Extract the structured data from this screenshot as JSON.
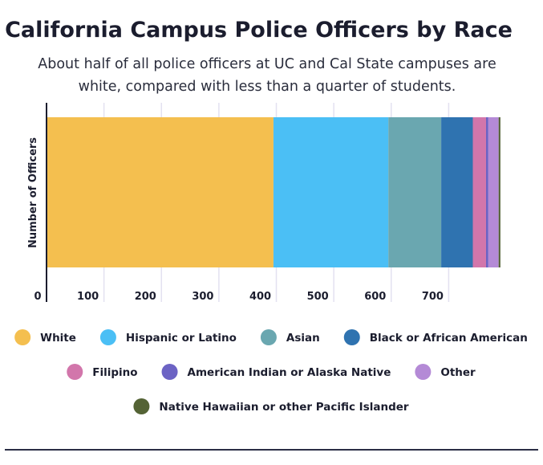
{
  "chart_data": {
    "type": "bar",
    "orientation": "horizontal",
    "stacked": true,
    "title": "California Campus Police Officers by Race",
    "subtitle": "About half of all police officers at UC and Cal State campuses are white, compared with less than a quarter of students.",
    "ylabel": "Number of Officers",
    "xlabel": "",
    "xlim": [
      0,
      800
    ],
    "xticks": [
      "0",
      "100",
      "200",
      "300",
      "400",
      "500",
      "600",
      "700"
    ],
    "grid": true,
    "legend_position": "bottom",
    "series": [
      {
        "name": "White",
        "value": 395,
        "color": "#f4bf4f"
      },
      {
        "name": "Hispanic or Latino",
        "value": 200,
        "color": "#4bbff5"
      },
      {
        "name": "Asian",
        "value": 92,
        "color": "#6aa7b0"
      },
      {
        "name": "Black or African American",
        "value": 55,
        "color": "#2f73b0"
      },
      {
        "name": "Filipino",
        "value": 23,
        "color": "#d276ab"
      },
      {
        "name": "American Indian or Alaska Native",
        "value": 4,
        "color": "#6c63c4"
      },
      {
        "name": "Other",
        "value": 18,
        "color": "#b48ad6"
      },
      {
        "name": "Native Hawaiian or other Pacific Islander",
        "value": 3,
        "color": "#546335"
      }
    ]
  }
}
